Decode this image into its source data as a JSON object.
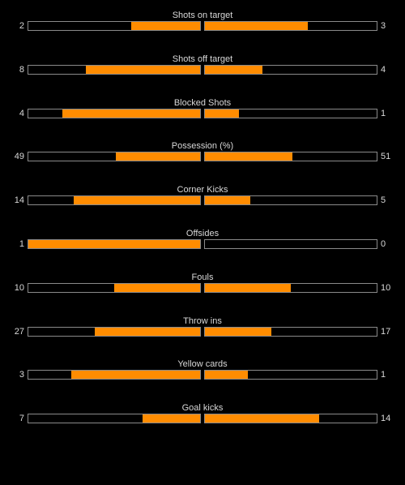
{
  "colors": {
    "background": "#000000",
    "bar_fill": "#ff8c00",
    "bar_border": "#8a8a8a",
    "text": "#d8d8d8"
  },
  "stats": [
    {
      "label": "Shots on target",
      "home": "2",
      "away": "3",
      "home_fraction": 0.4,
      "away_fraction": 0.6
    },
    {
      "label": "Shots off target",
      "home": "8",
      "away": "4",
      "home_fraction": 0.667,
      "away_fraction": 0.333
    },
    {
      "label": "Blocked Shots",
      "home": "4",
      "away": "1",
      "home_fraction": 0.8,
      "away_fraction": 0.2
    },
    {
      "label": "Possession (%)",
      "home": "49",
      "away": "51",
      "home_fraction": 0.49,
      "away_fraction": 0.51
    },
    {
      "label": "Corner Kicks",
      "home": "14",
      "away": "5",
      "home_fraction": 0.737,
      "away_fraction": 0.263
    },
    {
      "label": "Offsides",
      "home": "1",
      "away": "0",
      "home_fraction": 1.0,
      "away_fraction": 0.0
    },
    {
      "label": "Fouls",
      "home": "10",
      "away": "10",
      "home_fraction": 0.5,
      "away_fraction": 0.5
    },
    {
      "label": "Throw ins",
      "home": "27",
      "away": "17",
      "home_fraction": 0.614,
      "away_fraction": 0.386
    },
    {
      "label": "Yellow cards",
      "home": "3",
      "away": "1",
      "home_fraction": 0.75,
      "away_fraction": 0.25
    },
    {
      "label": "Goal kicks",
      "home": "7",
      "away": "14",
      "home_fraction": 0.333,
      "away_fraction": 0.667
    }
  ]
}
